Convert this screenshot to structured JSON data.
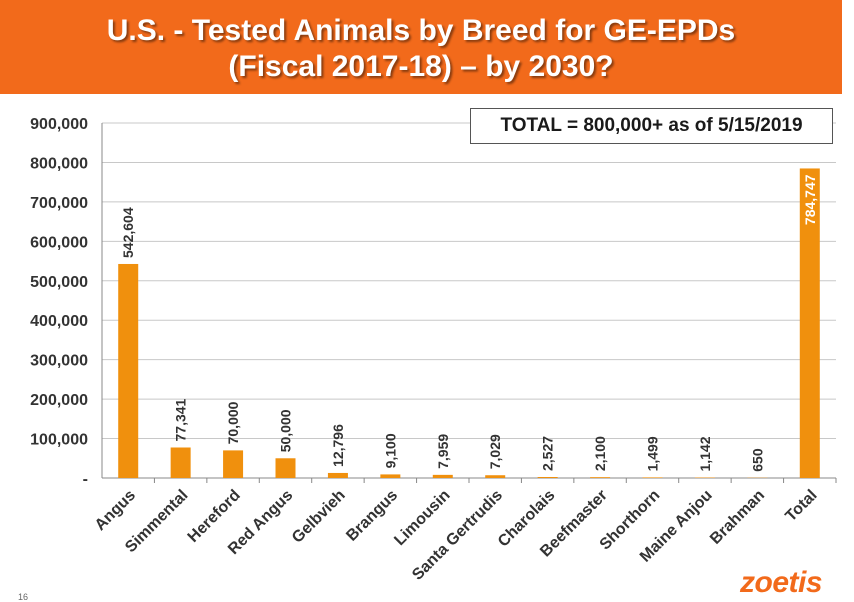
{
  "header": {
    "title_line1": "U.S. - Tested Animals by Breed for GE-EPDs",
    "title_line2": "(Fiscal 2017-18) – by 2030?"
  },
  "total_note": "TOTAL = 800,000+ as of 5/15/2019",
  "logo_text": "zoetis",
  "page_number": "16",
  "colors": {
    "banner": "#f26a1b",
    "bar": "#f0900d",
    "logo": "#f26a1b"
  },
  "chart_data": {
    "type": "bar",
    "title": "",
    "xlabel": "",
    "ylabel": "",
    "categories": [
      "Angus",
      "Simmental",
      "Hereford",
      "Red Angus",
      "Gelbvieh",
      "Brangus",
      "Limousin",
      "Santa Gertrudis",
      "Charolais",
      "Beefmaster",
      "Shorthorn",
      "Maine Anjou",
      "Brahman",
      "Total"
    ],
    "values": [
      542604,
      77341,
      70000,
      50000,
      12796,
      9100,
      7959,
      7029,
      2527,
      2100,
      1499,
      1142,
      650,
      784747
    ],
    "data_labels": [
      "542,604",
      "77,341",
      "70,000",
      "50,000",
      "12,796",
      "9,100",
      "7,959",
      "7,029",
      "2,527",
      "2,100",
      "1,499",
      "1,142",
      "650",
      "784,747"
    ],
    "ylim": [
      0,
      900000
    ],
    "y_ticks": [
      0,
      100000,
      200000,
      300000,
      400000,
      500000,
      600000,
      700000,
      800000,
      900000
    ],
    "y_tick_labels": [
      "-",
      "100,000",
      "200,000",
      "300,000",
      "400,000",
      "500,000",
      "600,000",
      "700,000",
      "800,000",
      "900,000"
    ],
    "grid": true,
    "legend": "none"
  }
}
